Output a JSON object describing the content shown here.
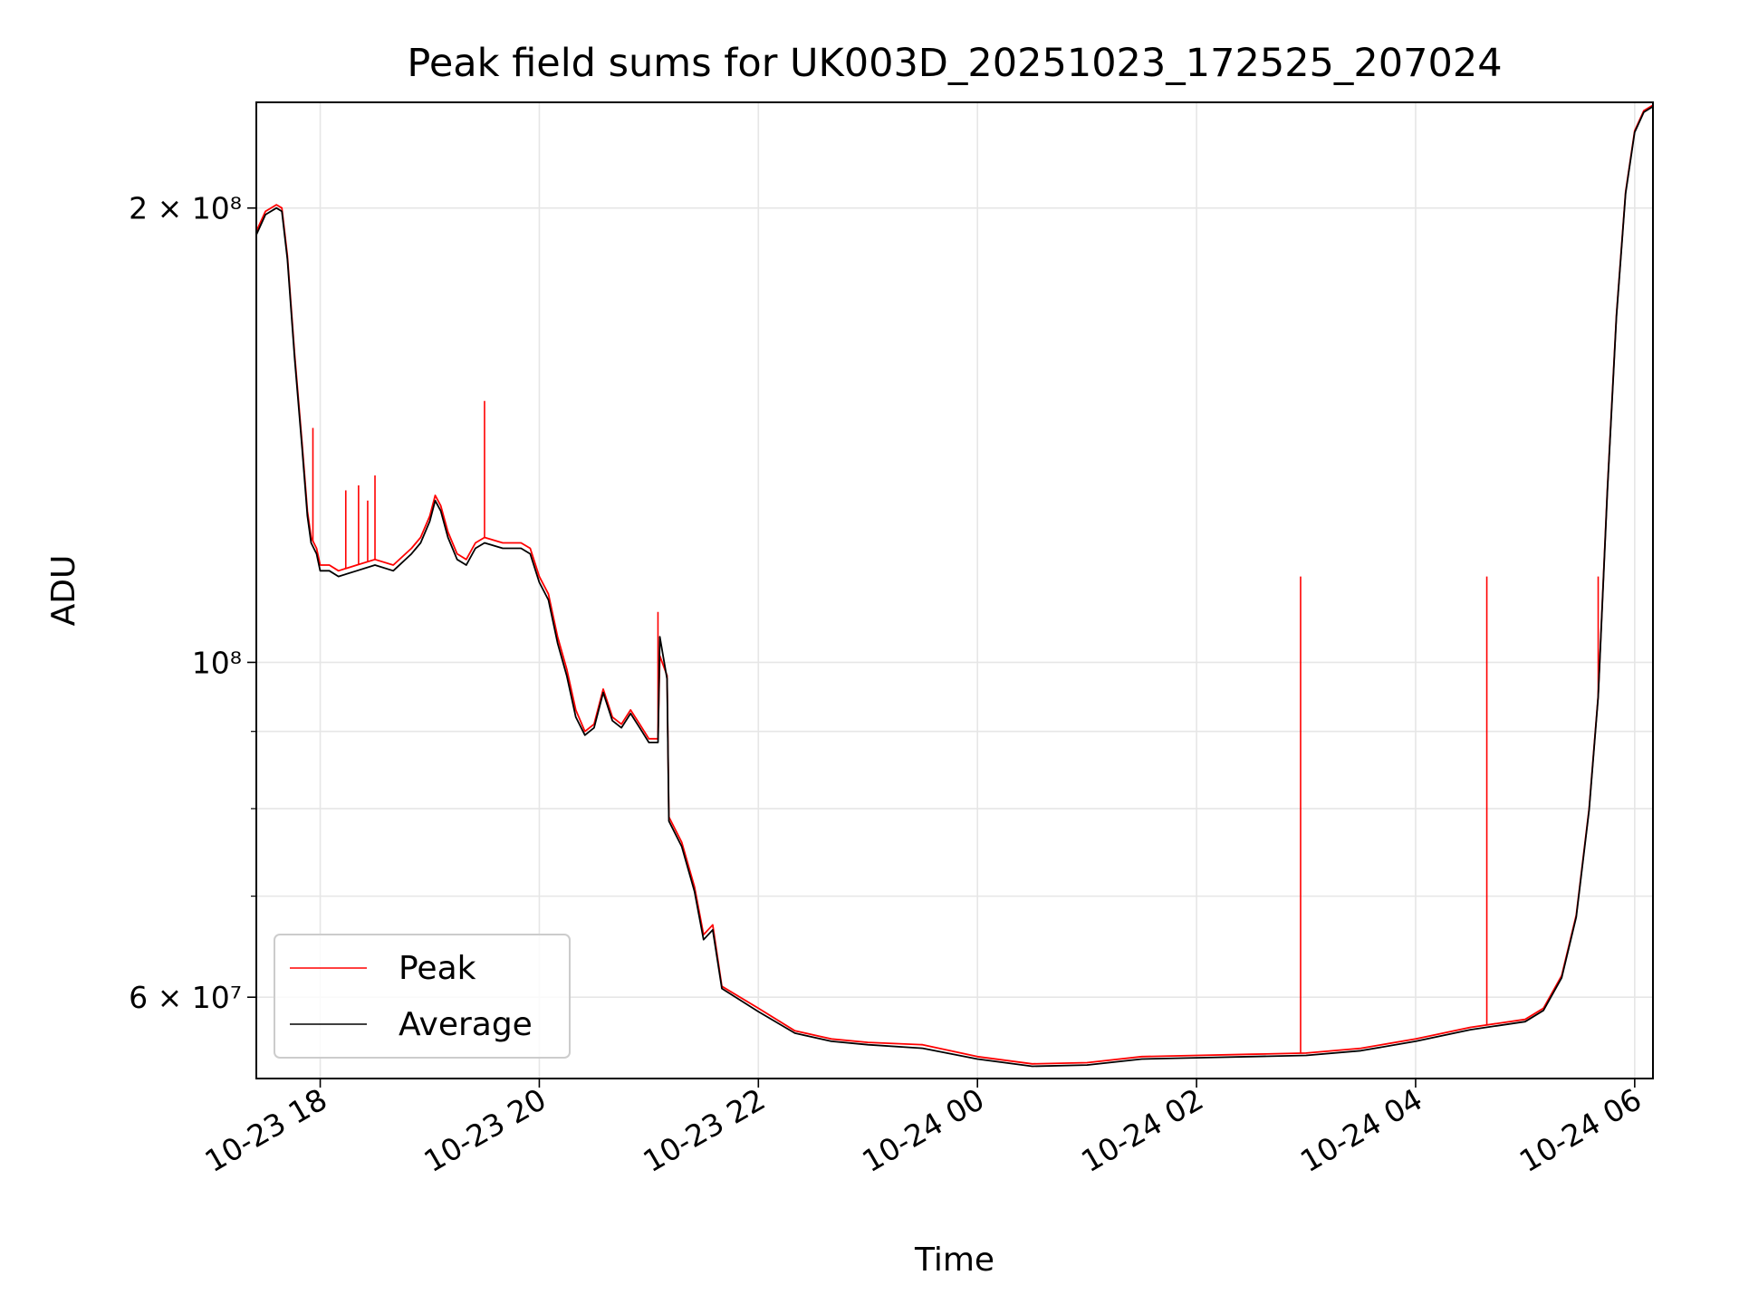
{
  "chart_data": {
    "type": "line",
    "title": "Peak field sums for UK003D_20251023_172525_207024",
    "xlabel": "Time",
    "ylabel": "ADU",
    "yscale": "log",
    "grid": true,
    "legend_position": "lower-left",
    "xlim": [
      "2025-10-23 17:25",
      "2025-10-24 06:10"
    ],
    "ylim": [
      53000000,
      235000000
    ],
    "x_ticks": [
      {
        "value": "2025-10-23 18:00",
        "label": "10-23 18"
      },
      {
        "value": "2025-10-23 20:00",
        "label": "10-23 20"
      },
      {
        "value": "2025-10-23 22:00",
        "label": "10-23 22"
      },
      {
        "value": "2025-10-24 00:00",
        "label": "10-24 00"
      },
      {
        "value": "2025-10-24 02:00",
        "label": "10-24 02"
      },
      {
        "value": "2025-10-24 04:00",
        "label": "10-24 04"
      },
      {
        "value": "2025-10-24 06:00",
        "label": "10-24 06"
      }
    ],
    "y_major_ticks": [
      {
        "value": 200000000,
        "label": "2 × 10⁸",
        "mantissa": "2",
        "exponent": "8"
      },
      {
        "value": 100000000,
        "label": "10⁸",
        "mantissa": "",
        "exponent": "8"
      },
      {
        "value": 60000000,
        "label": "6 × 10⁷",
        "mantissa": "6",
        "exponent": "7"
      }
    ],
    "y_minor_ticks": [
      70000000,
      80000000,
      90000000
    ],
    "series": [
      {
        "name": "Peak",
        "color": "#ff0000",
        "points": [
          [
            "2025-10-23 17:25",
            193000000
          ],
          [
            "2025-10-23 17:30",
            199000000
          ],
          [
            "2025-10-23 17:36",
            201000000
          ],
          [
            "2025-10-23 17:39",
            200000000
          ],
          [
            "2025-10-23 17:42",
            186000000
          ],
          [
            "2025-10-23 17:46",
            160000000
          ],
          [
            "2025-10-23 17:50",
            140000000
          ],
          [
            "2025-10-23 17:53",
            126000000
          ],
          [
            "2025-10-23 17:55",
            121000000
          ],
          [
            "2025-10-23 17:58",
            119000000
          ],
          [
            "2025-10-23 18:00",
            116000000
          ],
          [
            "2025-10-23 18:05",
            116000000
          ],
          [
            "2025-10-23 18:10",
            115000000
          ],
          [
            "2025-10-23 18:20",
            116000000
          ],
          [
            "2025-10-23 18:30",
            117000000
          ],
          [
            "2025-10-23 18:40",
            116000000
          ],
          [
            "2025-10-23 18:50",
            119000000
          ],
          [
            "2025-10-23 18:55",
            121000000
          ],
          [
            "2025-10-23 19:00",
            125000000
          ],
          [
            "2025-10-23 19:03",
            129000000
          ],
          [
            "2025-10-23 19:06",
            127000000
          ],
          [
            "2025-10-23 19:10",
            122000000
          ],
          [
            "2025-10-23 19:15",
            118000000
          ],
          [
            "2025-10-23 19:20",
            117000000
          ],
          [
            "2025-10-23 19:25",
            120000000
          ],
          [
            "2025-10-23 19:30",
            121000000
          ],
          [
            "2025-10-23 19:40",
            120000000
          ],
          [
            "2025-10-23 19:50",
            120000000
          ],
          [
            "2025-10-23 19:55",
            119000000
          ],
          [
            "2025-10-23 20:00",
            114000000
          ],
          [
            "2025-10-23 20:05",
            111000000
          ],
          [
            "2025-10-23 20:10",
            104000000
          ],
          [
            "2025-10-23 20:15",
            99000000
          ],
          [
            "2025-10-23 20:20",
            93000000
          ],
          [
            "2025-10-23 20:25",
            90000000
          ],
          [
            "2025-10-23 20:30",
            91000000
          ],
          [
            "2025-10-23 20:35",
            96000000
          ],
          [
            "2025-10-23 20:40",
            92000000
          ],
          [
            "2025-10-23 20:45",
            91000000
          ],
          [
            "2025-10-23 20:50",
            93000000
          ],
          [
            "2025-10-23 20:55",
            91000000
          ],
          [
            "2025-10-23 21:00",
            89000000
          ],
          [
            "2025-10-23 21:05",
            89000000
          ],
          [
            "2025-10-23 21:06",
            101000000
          ],
          [
            "2025-10-23 21:10",
            98000000
          ],
          [
            "2025-10-23 21:11",
            79000000
          ],
          [
            "2025-10-23 21:18",
            76000000
          ],
          [
            "2025-10-23 21:25",
            71000000
          ],
          [
            "2025-10-23 21:30",
            66000000
          ],
          [
            "2025-10-23 21:35",
            67000000
          ],
          [
            "2025-10-23 21:40",
            61000000
          ],
          [
            "2025-10-23 22:00",
            59000000
          ],
          [
            "2025-10-23 22:20",
            57000000
          ],
          [
            "2025-10-23 22:40",
            56300000
          ],
          [
            "2025-10-23 23:00",
            56000000
          ],
          [
            "2025-10-23 23:30",
            55800000
          ],
          [
            "2025-10-24 00:00",
            54800000
          ],
          [
            "2025-10-24 00:30",
            54200000
          ],
          [
            "2025-10-24 01:00",
            54300000
          ],
          [
            "2025-10-24 01:30",
            54800000
          ],
          [
            "2025-10-24 02:00",
            54900000
          ],
          [
            "2025-10-24 02:30",
            55000000
          ],
          [
            "2025-10-24 03:00",
            55100000
          ],
          [
            "2025-10-24 03:30",
            55500000
          ],
          [
            "2025-10-24 04:00",
            56300000
          ],
          [
            "2025-10-24 04:30",
            57300000
          ],
          [
            "2025-10-24 05:00",
            58000000
          ],
          [
            "2025-10-24 05:10",
            59000000
          ],
          [
            "2025-10-24 05:20",
            62000000
          ],
          [
            "2025-10-24 05:28",
            68000000
          ],
          [
            "2025-10-24 05:35",
            80000000
          ],
          [
            "2025-10-24 05:40",
            95000000
          ],
          [
            "2025-10-24 05:45",
            130000000
          ],
          [
            "2025-10-24 05:50",
            170000000
          ],
          [
            "2025-10-24 05:55",
            205000000
          ],
          [
            "2025-10-24 06:00",
            225000000
          ],
          [
            "2025-10-24 06:05",
            232000000
          ],
          [
            "2025-10-24 06:10",
            234000000
          ]
        ],
        "spikes": [
          [
            "2025-10-23 17:56",
            143000000
          ],
          [
            "2025-10-23 18:14",
            130000000
          ],
          [
            "2025-10-23 18:21",
            131000000
          ],
          [
            "2025-10-23 18:26",
            128000000
          ],
          [
            "2025-10-23 18:30",
            133000000
          ],
          [
            "2025-10-23 19:30",
            149000000
          ],
          [
            "2025-10-23 21:05",
            108000000
          ],
          [
            "2025-10-24 02:57",
            114000000
          ],
          [
            "2025-10-24 04:39",
            114000000
          ],
          [
            "2025-10-24 05:40",
            114000000
          ]
        ]
      },
      {
        "name": "Average",
        "color": "#000000",
        "points": [
          [
            "2025-10-23 17:25",
            192000000
          ],
          [
            "2025-10-23 17:30",
            198000000
          ],
          [
            "2025-10-23 17:36",
            200000000
          ],
          [
            "2025-10-23 17:39",
            199000000
          ],
          [
            "2025-10-23 17:42",
            185000000
          ],
          [
            "2025-10-23 17:46",
            159000000
          ],
          [
            "2025-10-23 17:50",
            139000000
          ],
          [
            "2025-10-23 17:53",
            125000000
          ],
          [
            "2025-10-23 17:55",
            120000000
          ],
          [
            "2025-10-23 17:58",
            118000000
          ],
          [
            "2025-10-23 18:00",
            115000000
          ],
          [
            "2025-10-23 18:05",
            115000000
          ],
          [
            "2025-10-23 18:10",
            114000000
          ],
          [
            "2025-10-23 18:20",
            115000000
          ],
          [
            "2025-10-23 18:30",
            116000000
          ],
          [
            "2025-10-23 18:40",
            115000000
          ],
          [
            "2025-10-23 18:50",
            118000000
          ],
          [
            "2025-10-23 18:55",
            120000000
          ],
          [
            "2025-10-23 19:00",
            124000000
          ],
          [
            "2025-10-23 19:03",
            128000000
          ],
          [
            "2025-10-23 19:06",
            126000000
          ],
          [
            "2025-10-23 19:10",
            121000000
          ],
          [
            "2025-10-23 19:15",
            117000000
          ],
          [
            "2025-10-23 19:20",
            116000000
          ],
          [
            "2025-10-23 19:25",
            119000000
          ],
          [
            "2025-10-23 19:30",
            120000000
          ],
          [
            "2025-10-23 19:40",
            119000000
          ],
          [
            "2025-10-23 19:50",
            119000000
          ],
          [
            "2025-10-23 19:55",
            118000000
          ],
          [
            "2025-10-23 20:00",
            113000000
          ],
          [
            "2025-10-23 20:05",
            110000000
          ],
          [
            "2025-10-23 20:10",
            103000000
          ],
          [
            "2025-10-23 20:15",
            98000000
          ],
          [
            "2025-10-23 20:20",
            92000000
          ],
          [
            "2025-10-23 20:25",
            89500000
          ],
          [
            "2025-10-23 20:30",
            90500000
          ],
          [
            "2025-10-23 20:35",
            95500000
          ],
          [
            "2025-10-23 20:40",
            91500000
          ],
          [
            "2025-10-23 20:45",
            90500000
          ],
          [
            "2025-10-23 20:50",
            92500000
          ],
          [
            "2025-10-23 20:55",
            90500000
          ],
          [
            "2025-10-23 21:00",
            88500000
          ],
          [
            "2025-10-23 21:05",
            88500000
          ],
          [
            "2025-10-23 21:06",
            104000000
          ],
          [
            "2025-10-23 21:10",
            97500000
          ],
          [
            "2025-10-23 21:11",
            78500000
          ],
          [
            "2025-10-23 21:18",
            75500000
          ],
          [
            "2025-10-23 21:25",
            70500000
          ],
          [
            "2025-10-23 21:30",
            65500000
          ],
          [
            "2025-10-23 21:35",
            66500000
          ],
          [
            "2025-10-23 21:40",
            60800000
          ],
          [
            "2025-10-23 22:00",
            58700000
          ],
          [
            "2025-10-23 22:20",
            56800000
          ],
          [
            "2025-10-23 22:40",
            56100000
          ],
          [
            "2025-10-23 23:00",
            55800000
          ],
          [
            "2025-10-23 23:30",
            55500000
          ],
          [
            "2025-10-24 00:00",
            54600000
          ],
          [
            "2025-10-24 00:30",
            54000000
          ],
          [
            "2025-10-24 01:00",
            54100000
          ],
          [
            "2025-10-24 01:30",
            54600000
          ],
          [
            "2025-10-24 02:00",
            54700000
          ],
          [
            "2025-10-24 02:30",
            54800000
          ],
          [
            "2025-10-24 03:00",
            54900000
          ],
          [
            "2025-10-24 03:30",
            55300000
          ],
          [
            "2025-10-24 04:00",
            56100000
          ],
          [
            "2025-10-24 04:30",
            57100000
          ],
          [
            "2025-10-24 05:00",
            57800000
          ],
          [
            "2025-10-24 05:10",
            58800000
          ],
          [
            "2025-10-24 05:20",
            61800000
          ],
          [
            "2025-10-24 05:28",
            67800000
          ],
          [
            "2025-10-24 05:35",
            79800000
          ],
          [
            "2025-10-24 05:40",
            94800000
          ],
          [
            "2025-10-24 05:45",
            129500000
          ],
          [
            "2025-10-24 05:50",
            169500000
          ],
          [
            "2025-10-24 05:55",
            204500000
          ],
          [
            "2025-10-24 06:00",
            224500000
          ],
          [
            "2025-10-24 06:05",
            231500000
          ],
          [
            "2025-10-24 06:10",
            233500000
          ]
        ]
      }
    ]
  }
}
